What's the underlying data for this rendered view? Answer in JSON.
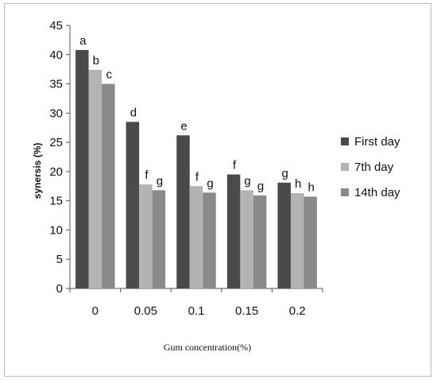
{
  "chart_data": {
    "type": "bar",
    "title": "",
    "xlabel": "Gum concentration(%)",
    "ylabel": "synersis (%)",
    "categories": [
      "0",
      "0.05",
      "0.1",
      "0.15",
      "0.2"
    ],
    "ylim": [
      0,
      45
    ],
    "yticks": [
      "0",
      "5",
      "10",
      "15",
      "20",
      "25",
      "30",
      "35",
      "40",
      "45"
    ],
    "grid": false,
    "legend_position": "right",
    "series": [
      {
        "name": "First day",
        "color": "#4a4a4a",
        "values": [
          40.8,
          28.5,
          26.2,
          19.5,
          18.1
        ],
        "letters": [
          "a",
          "d",
          "e",
          "f",
          "g"
        ]
      },
      {
        "name": "7th day",
        "color": "#b3b3b3",
        "values": [
          37.4,
          17.8,
          17.5,
          16.8,
          16.3
        ],
        "letters": [
          "b",
          "f",
          "f",
          "g",
          "h"
        ]
      },
      {
        "name": "14th day",
        "color": "#8a8a8a",
        "values": [
          35.0,
          16.8,
          16.4,
          15.9,
          15.7
        ],
        "letters": [
          "c",
          "g",
          "g",
          "g",
          "h"
        ]
      }
    ]
  }
}
